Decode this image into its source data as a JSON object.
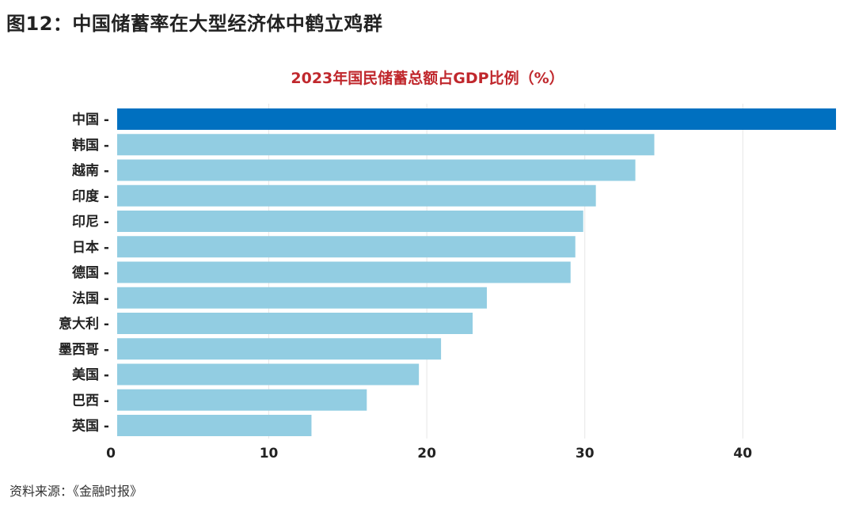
{
  "figure": {
    "title": "图12：中国储蓄率在大型经济体中鹤立鸡群",
    "source": "资料来源：《金融时报》"
  },
  "chart_data": {
    "type": "bar",
    "orientation": "horizontal",
    "title": "2023年国民储蓄总额占GDP比例（%）",
    "xlabel": "",
    "ylabel": "",
    "categories": [
      "中国",
      "韩国",
      "越南",
      "印度",
      "印尼",
      "日本",
      "德国",
      "法国",
      "意大利",
      "墨西哥",
      "美国",
      "巴西",
      "英国"
    ],
    "values": [
      45.9,
      34.4,
      33.2,
      30.7,
      29.9,
      29.4,
      29.1,
      23.8,
      22.9,
      20.9,
      19.5,
      16.2,
      12.7
    ],
    "xlim": [
      0,
      46
    ],
    "xticks": [
      0,
      10,
      20,
      30,
      40
    ],
    "grid": true,
    "colors": {
      "highlight": "#0070c0",
      "default": "#92cde2",
      "grid": "#e6e6e6"
    }
  }
}
